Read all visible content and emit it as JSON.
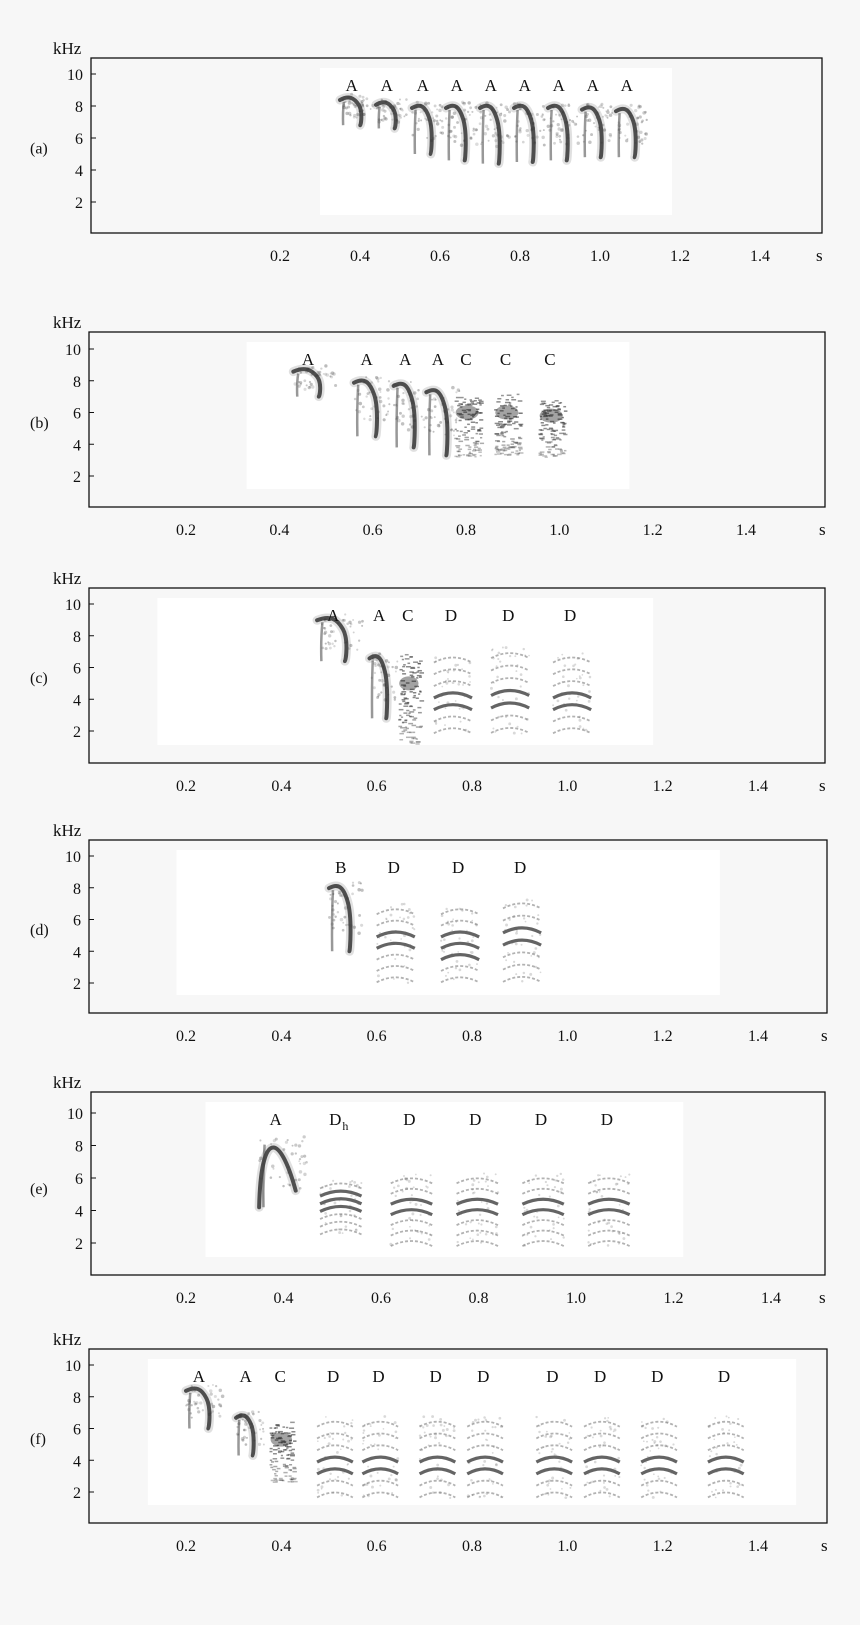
{
  "chart_data": [
    {
      "type": "spectrogram",
      "panel_label": "(a)",
      "ylabel": "kHz",
      "xlabel": "s",
      "yticks": [
        2,
        4,
        6,
        8,
        10
      ],
      "xticks": [
        "0.2",
        "0.4",
        "0.6",
        "0.8",
        "1.0",
        "1.2",
        "1.4"
      ],
      "xlim": [
        0,
        1.145
      ],
      "ylim": [
        0,
        11.1
      ],
      "sonogram_span_s": [
        0.3,
        1.18
      ],
      "syllables": [
        {
          "label": "A",
          "shape": "down",
          "t": 0.35,
          "dur": 0.065,
          "f_hi": 8.5,
          "f_lo": 6.8
        },
        {
          "label": "A",
          "shape": "down",
          "t": 0.44,
          "dur": 0.06,
          "f_hi": 8.2,
          "f_lo": 6.6
        },
        {
          "label": "A",
          "shape": "down",
          "t": 0.53,
          "dur": 0.06,
          "f_hi": 8.0,
          "f_lo": 5.0
        },
        {
          "label": "A",
          "shape": "down",
          "t": 0.615,
          "dur": 0.06,
          "f_hi": 8.0,
          "f_lo": 4.6
        },
        {
          "label": "A",
          "shape": "down",
          "t": 0.7,
          "dur": 0.06,
          "f_hi": 8.0,
          "f_lo": 4.4
        },
        {
          "label": "A",
          "shape": "down",
          "t": 0.785,
          "dur": 0.06,
          "f_hi": 8.0,
          "f_lo": 4.5
        },
        {
          "label": "A",
          "shape": "down",
          "t": 0.87,
          "dur": 0.06,
          "f_hi": 8.0,
          "f_lo": 4.6
        },
        {
          "label": "A",
          "shape": "down",
          "t": 0.955,
          "dur": 0.06,
          "f_hi": 7.9,
          "f_lo": 4.8
        },
        {
          "label": "A",
          "shape": "down",
          "t": 1.04,
          "dur": 0.06,
          "f_hi": 7.8,
          "f_lo": 4.8
        }
      ]
    },
    {
      "type": "spectrogram",
      "panel_label": "(b)",
      "ylabel": "kHz",
      "xlabel": "s",
      "yticks": [
        2,
        4,
        6,
        8,
        10
      ],
      "xticks": [
        "0.2",
        "0.4",
        "0.6",
        "0.8",
        "1.0",
        "1.2",
        "1.4"
      ],
      "xlim": [
        0,
        1.145
      ],
      "ylim": [
        0,
        11.1
      ],
      "sonogram_span_s": [
        0.33,
        1.15
      ],
      "syllables": [
        {
          "label": "A",
          "shape": "down",
          "t": 0.43,
          "dur": 0.07,
          "f_hi": 8.7,
          "f_lo": 7.0
        },
        {
          "label": "A",
          "shape": "down",
          "t": 0.56,
          "dur": 0.06,
          "f_hi": 8.0,
          "f_lo": 4.5
        },
        {
          "label": "A",
          "shape": "down",
          "t": 0.645,
          "dur": 0.055,
          "f_hi": 7.8,
          "f_lo": 3.8
        },
        {
          "label": "A",
          "shape": "down",
          "t": 0.715,
          "dur": 0.055,
          "f_hi": 7.4,
          "f_lo": 3.3
        },
        {
          "label": "C",
          "shape": "noisy",
          "t": 0.775,
          "dur": 0.055,
          "f_hi": 7.0,
          "f_lo": 3.2,
          "f_center": 6.0
        },
        {
          "label": "C",
          "shape": "noisy",
          "t": 0.86,
          "dur": 0.055,
          "f_hi": 7.2,
          "f_lo": 3.3,
          "f_center": 6.0
        },
        {
          "label": "C",
          "shape": "noisy",
          "t": 0.955,
          "dur": 0.055,
          "f_hi": 6.8,
          "f_lo": 3.2,
          "f_center": 5.8
        }
      ]
    },
    {
      "type": "spectrogram",
      "panel_label": "(c)",
      "ylabel": "kHz",
      "xlabel": "s",
      "yticks": [
        2,
        4,
        6,
        8,
        10
      ],
      "xticks": [
        "0.2",
        "0.4",
        "0.6",
        "0.8",
        "1.0",
        "1.2",
        "1.4"
      ],
      "xlim": [
        0,
        1.145
      ],
      "ylim": [
        0,
        11.1
      ],
      "sonogram_span_s": [
        0.14,
        1.18
      ],
      "syllables": [
        {
          "label": "A",
          "shape": "down",
          "t": 0.475,
          "dur": 0.075,
          "f_hi": 9.1,
          "f_lo": 6.4
        },
        {
          "label": "A",
          "shape": "down",
          "t": 0.585,
          "dur": 0.045,
          "f_hi": 6.7,
          "f_lo": 2.8
        },
        {
          "label": "C",
          "shape": "noisy",
          "t": 0.645,
          "dur": 0.045,
          "f_hi": 7.0,
          "f_lo": 1.2,
          "f_center": 5.0
        },
        {
          "label": "D",
          "shape": "harmonic",
          "t": 0.72,
          "dur": 0.08,
          "f_hi": 7.0,
          "f_lo": 1.8,
          "f_center": 4.0
        },
        {
          "label": "D",
          "shape": "harmonic",
          "t": 0.84,
          "dur": 0.08,
          "f_hi": 7.3,
          "f_lo": 1.8,
          "f_center": 4.3
        },
        {
          "label": "D",
          "shape": "harmonic",
          "t": 0.97,
          "dur": 0.08,
          "f_hi": 7.0,
          "f_lo": 1.8,
          "f_center": 4.2
        }
      ]
    },
    {
      "type": "spectrogram",
      "panel_label": "(d)",
      "ylabel": "kHz",
      "xlabel": "s",
      "yticks": [
        2,
        4,
        6,
        8,
        10
      ],
      "xticks": [
        "0.2",
        "0.4",
        "0.6",
        "0.8",
        "1.0",
        "1.2",
        "1.4"
      ],
      "xlim": [
        0,
        1.145
      ],
      "ylim": [
        0,
        11.1
      ],
      "sonogram_span_s": [
        0.18,
        1.32
      ],
      "syllables": [
        {
          "label": "B",
          "shape": "down",
          "t": 0.5,
          "dur": 0.055,
          "f_hi": 8.1,
          "f_lo": 4.0
        },
        {
          "label": "D",
          "shape": "harmonic",
          "t": 0.6,
          "dur": 0.08,
          "f_hi": 7.0,
          "f_lo": 2.0,
          "f_center": 4.6
        },
        {
          "label": "D",
          "shape": "harmonic",
          "t": 0.735,
          "dur": 0.08,
          "f_hi": 7.0,
          "f_lo": 2.0,
          "f_center": 4.5
        },
        {
          "label": "D",
          "shape": "harmonic",
          "t": 0.865,
          "dur": 0.08,
          "f_hi": 7.4,
          "f_lo": 2.0,
          "f_center": 4.8
        }
      ]
    },
    {
      "type": "spectrogram",
      "panel_label": "(e)",
      "ylabel": "kHz",
      "xlabel": "s",
      "yticks": [
        2,
        4,
        6,
        8,
        10
      ],
      "xticks": [
        "0.2",
        "0.4",
        "0.6",
        "0.8",
        "1.0",
        "1.2",
        "1.4"
      ],
      "xlim": [
        0,
        1.145
      ],
      "ylim": [
        0,
        11.1
      ],
      "sonogram_span_s": [
        0.24,
        1.22
      ],
      "syllables": [
        {
          "label": "A",
          "shape": "arch",
          "t": 0.35,
          "dur": 0.075,
          "f_hi": 8.3,
          "f_lo": 4.2
        },
        {
          "label": "D",
          "label_sub": "h",
          "shape": "harmonic",
          "t": 0.475,
          "dur": 0.085,
          "f_hi": 5.9,
          "f_lo": 2.6,
          "f_center": 4.7
        },
        {
          "label": "D",
          "shape": "harmonic",
          "t": 0.62,
          "dur": 0.085,
          "f_hi": 6.3,
          "f_lo": 1.8,
          "f_center": 4.6
        },
        {
          "label": "D",
          "shape": "harmonic",
          "t": 0.755,
          "dur": 0.085,
          "f_hi": 6.3,
          "f_lo": 1.8,
          "f_center": 4.5
        },
        {
          "label": "D",
          "shape": "harmonic",
          "t": 0.89,
          "dur": 0.085,
          "f_hi": 6.3,
          "f_lo": 1.8,
          "f_center": 4.5
        },
        {
          "label": "D",
          "shape": "harmonic",
          "t": 1.025,
          "dur": 0.085,
          "f_hi": 6.3,
          "f_lo": 1.8,
          "f_center": 4.3
        }
      ]
    },
    {
      "type": "spectrogram",
      "panel_label": "(f)",
      "ylabel": "kHz",
      "xlabel": "s",
      "yticks": [
        2,
        4,
        6,
        8,
        10
      ],
      "xticks": [
        "0.2",
        "0.4",
        "0.6",
        "0.8",
        "1.0",
        "1.2",
        "1.4"
      ],
      "xlim": [
        0,
        1.145
      ],
      "ylim": [
        0,
        11.1
      ],
      "sonogram_span_s": [
        0.12,
        1.48
      ],
      "syllables": [
        {
          "label": "A",
          "shape": "down",
          "t": 0.2,
          "dur": 0.06,
          "f_hi": 8.5,
          "f_lo": 6.0
        },
        {
          "label": "A",
          "shape": "down",
          "t": 0.305,
          "dur": 0.045,
          "f_hi": 6.8,
          "f_lo": 4.3
        },
        {
          "label": "C",
          "shape": "noisy",
          "t": 0.375,
          "dur": 0.05,
          "f_hi": 6.5,
          "f_lo": 2.6,
          "f_center": 5.3
        },
        {
          "label": "D",
          "shape": "harmonic",
          "t": 0.475,
          "dur": 0.075,
          "f_hi": 6.8,
          "f_lo": 1.6,
          "f_center": 4.0
        },
        {
          "label": "D",
          "shape": "harmonic",
          "t": 0.57,
          "dur": 0.075,
          "f_hi": 6.8,
          "f_lo": 1.6,
          "f_center": 4.0
        },
        {
          "label": "D",
          "shape": "harmonic",
          "t": 0.69,
          "dur": 0.075,
          "f_hi": 6.8,
          "f_lo": 1.6,
          "f_center": 4.0
        },
        {
          "label": "D",
          "shape": "harmonic",
          "t": 0.79,
          "dur": 0.075,
          "f_hi": 6.8,
          "f_lo": 1.6,
          "f_center": 4.0
        },
        {
          "label": "D",
          "shape": "harmonic",
          "t": 0.935,
          "dur": 0.075,
          "f_hi": 6.8,
          "f_lo": 1.6,
          "f_center": 4.0
        },
        {
          "label": "D",
          "shape": "harmonic",
          "t": 1.035,
          "dur": 0.075,
          "f_hi": 6.8,
          "f_lo": 1.6,
          "f_center": 4.0
        },
        {
          "label": "D",
          "shape": "harmonic",
          "t": 1.155,
          "dur": 0.075,
          "f_hi": 6.8,
          "f_lo": 1.6,
          "f_center": 4.0
        },
        {
          "label": "D",
          "shape": "harmonic",
          "t": 1.295,
          "dur": 0.075,
          "f_hi": 6.8,
          "f_lo": 1.6,
          "f_center": 4.0
        }
      ]
    }
  ],
  "colors": {
    "page_background": "#f7f7f7",
    "plot_frame": "#111111",
    "sonogram_background": "#ffffff",
    "ink": "#222222"
  }
}
